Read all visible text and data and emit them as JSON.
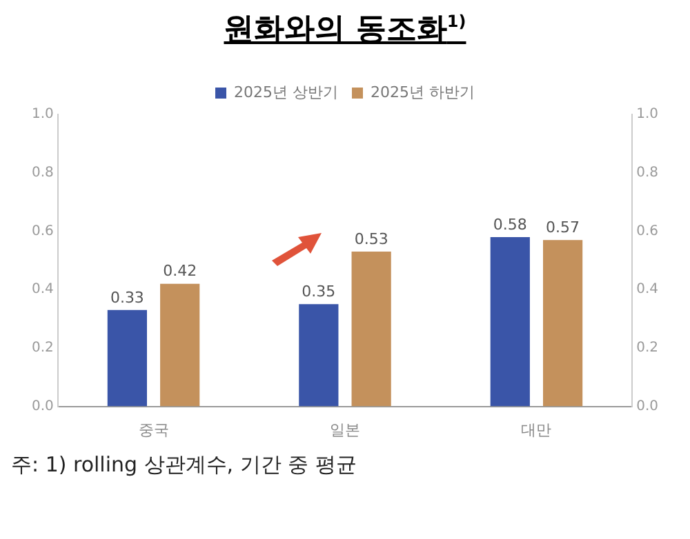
{
  "chart_data": {
    "type": "bar",
    "title": "원화와의 동조화$^{1)}$",
    "categories": [
      "중국",
      "일본",
      "대만"
    ],
    "series": [
      {
        "name": "2025년 상반기",
        "color": "#3a55a8",
        "values": [
          0.33,
          0.35,
          0.58
        ]
      },
      {
        "name": "2025년 하반기",
        "color": "#c4915c",
        "values": [
          0.42,
          0.53,
          0.57
        ]
      }
    ],
    "ylim": [
      0,
      1
    ],
    "yticks": [
      {
        "value": 0,
        "label": "0.0"
      },
      0.2,
      0.4,
      0.6,
      0.8,
      {
        "value": 1,
        "label": "1.0"
      }
    ],
    "y2lim": [
      0,
      1
    ],
    "y2ticks": [
      {
        "value": 0,
        "label": "0.0"
      },
      0.2,
      0.4,
      0.6,
      0.8,
      {
        "value": 1,
        "label": "1.0"
      }
    ],
    "grid": false,
    "legend": "top",
    "data_labels": true,
    "annotations": [
      "주: 1) rolling 상관계수, 기간 중 평균"
    ]
  }
}
